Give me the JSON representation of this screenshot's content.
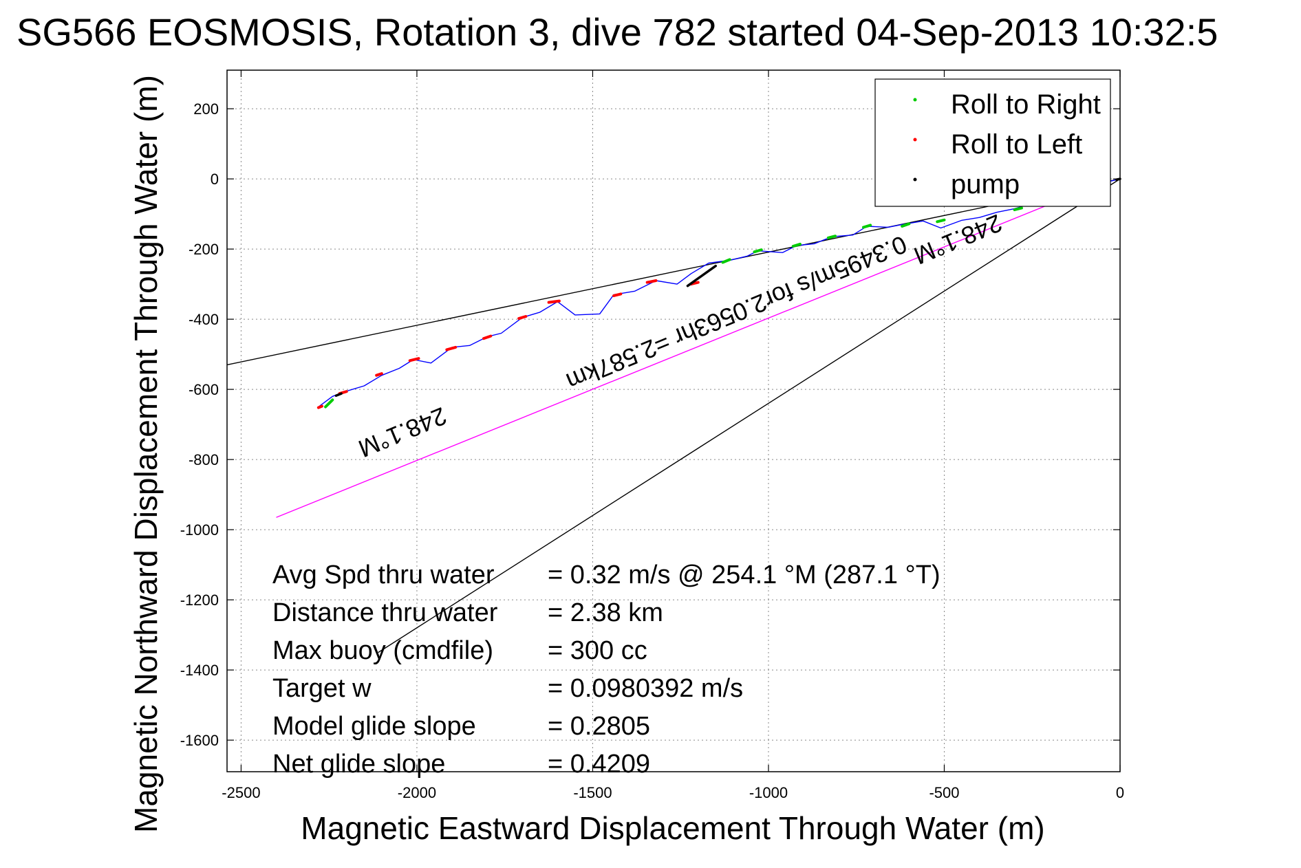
{
  "chart_data": {
    "type": "line",
    "title": "SG566 EOSMOSIS, Rotation 3, dive 782 started 04-Sep-2013 10:32:5",
    "xlabel": "Magnetic Eastward Displacement Through Water (m)",
    "ylabel": "Magnetic Northward Displacement Through Water (m)",
    "xlim": [
      -2540,
      0
    ],
    "ylim": [
      -1690,
      310
    ],
    "xticks": [
      -2500,
      -2000,
      -1500,
      -1000,
      -500,
      0
    ],
    "yticks": [
      200,
      0,
      -200,
      -400,
      -600,
      -800,
      -1000,
      -1200,
      -1400,
      -1600
    ],
    "grid": true,
    "legend": {
      "position": "top-right",
      "entries": [
        {
          "label": "Roll to Right",
          "color": "#00cc00"
        },
        {
          "label": "Roll to Left",
          "color": "#ff0000"
        },
        {
          "label": "pump",
          "color": "#000000"
        }
      ]
    },
    "track": {
      "color": "#0000ff",
      "x": [
        -2280,
        -2240,
        -2200,
        -2150,
        -2100,
        -2050,
        -2010,
        -1960,
        -1900,
        -1850,
        -1800,
        -1760,
        -1700,
        -1650,
        -1600,
        -1550,
        -1480,
        -1440,
        -1380,
        -1320,
        -1260,
        -1220,
        -1170,
        -1110,
        -1060,
        -1030,
        -960,
        -920,
        -870,
        -820,
        -760,
        -720,
        -660,
        -620,
        -560,
        -510,
        -450,
        -400,
        -350,
        -300,
        -250,
        -200,
        -150,
        -100,
        -50,
        0
      ],
      "y": [
        -650,
        -620,
        -605,
        -590,
        -560,
        -540,
        -515,
        -525,
        -480,
        -475,
        -450,
        -440,
        -395,
        -380,
        -350,
        -388,
        -385,
        -330,
        -320,
        -290,
        -300,
        -270,
        -240,
        -232,
        -220,
        -205,
        -210,
        -190,
        -185,
        -165,
        -160,
        -135,
        -138,
        -130,
        -120,
        -140,
        -118,
        -110,
        -95,
        -85,
        -70,
        -55,
        -40,
        -25,
        -12,
        0
      ]
    },
    "lines": [
      {
        "name": "heading-line-upper",
        "color": "#000000",
        "x": [
          -2540,
          0
        ],
        "y": [
          -530,
          0
        ]
      },
      {
        "name": "heading-line-lower",
        "color": "#000000",
        "x": [
          -2110,
          0
        ],
        "y": [
          -1350,
          0
        ]
      },
      {
        "name": "current-line",
        "color": "#ff00ff",
        "x": [
          -2400,
          -170
        ],
        "y": [
          -965,
          -60
        ]
      }
    ],
    "roll_right": [
      {
        "x": [
          -2260,
          -2240
        ],
        "y": [
          -650,
          -630
        ]
      },
      {
        "x": [
          -1130,
          -1110
        ],
        "y": [
          -238,
          -230
        ]
      },
      {
        "x": [
          -1040,
          -1020
        ],
        "y": [
          -208,
          -202
        ]
      },
      {
        "x": [
          -930,
          -910
        ],
        "y": [
          -192,
          -186
        ]
      },
      {
        "x": [
          -830,
          -810
        ],
        "y": [
          -168,
          -163
        ]
      },
      {
        "x": [
          -730,
          -710
        ],
        "y": [
          -138,
          -132
        ]
      },
      {
        "x": [
          -620,
          -600
        ],
        "y": [
          -135,
          -128
        ]
      },
      {
        "x": [
          -520,
          -500
        ],
        "y": [
          -122,
          -117
        ]
      },
      {
        "x": [
          -300,
          -280
        ],
        "y": [
          -88,
          -83
        ]
      }
    ],
    "roll_left": [
      {
        "x": [
          -2280,
          -2270
        ],
        "y": [
          -652,
          -648
        ]
      },
      {
        "x": [
          -2220,
          -2200
        ],
        "y": [
          -612,
          -606
        ]
      },
      {
        "x": [
          -2115,
          -2100
        ],
        "y": [
          -560,
          -555
        ]
      },
      {
        "x": [
          -2020,
          -1995
        ],
        "y": [
          -518,
          -512
        ]
      },
      {
        "x": [
          -1915,
          -1890
        ],
        "y": [
          -487,
          -480
        ]
      },
      {
        "x": [
          -1810,
          -1790
        ],
        "y": [
          -455,
          -448
        ]
      },
      {
        "x": [
          -1710,
          -1690
        ],
        "y": [
          -398,
          -392
        ]
      },
      {
        "x": [
          -1625,
          -1595
        ],
        "y": [
          -352,
          -348
        ]
      },
      {
        "x": [
          -1440,
          -1420
        ],
        "y": [
          -333,
          -328
        ]
      },
      {
        "x": [
          -1345,
          -1320
        ],
        "y": [
          -295,
          -290
        ]
      },
      {
        "x": [
          -1220,
          -1200
        ],
        "y": [
          -300,
          -295
        ]
      }
    ],
    "pump": [
      {
        "x": [
          -1230,
          -1150
        ],
        "y": [
          -305,
          -248
        ]
      },
      {
        "x": [
          -2230,
          -2215
        ],
        "y": [
          -618,
          -612
        ]
      },
      {
        "x": [
          -10,
          0
        ],
        "y": [
          -2,
          0
        ]
      }
    ],
    "rotated_labels": [
      {
        "text": "248.1°M",
        "x": -2050,
        "y": -700,
        "angle": 157.5
      },
      {
        "text": "0.3495m/s for2.0563hr =2.587km",
        "x": -1100,
        "y": -360,
        "angle": 157.5
      },
      {
        "text": "248.1°M",
        "x": -470,
        "y": -150,
        "angle": 157.5
      }
    ],
    "annotations": [
      {
        "label": "Avg Spd thru water",
        "value": "=  0.32 m/s @ 254.1 °M (287.1 °T)"
      },
      {
        "label": "Distance thru water",
        "value": "=  2.38 km"
      },
      {
        "label": "Max buoy (cmdfile)",
        "value": "= 300 cc"
      },
      {
        "label": "Target w",
        "value": "= 0.0980392 m/s"
      },
      {
        "label": "Model glide slope",
        "value": "= 0.2805"
      },
      {
        "label": "Net glide slope",
        "value": "= 0.4209"
      }
    ]
  }
}
